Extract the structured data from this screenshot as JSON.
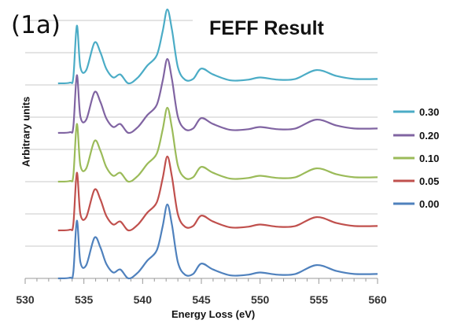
{
  "panel_label": "(1a)",
  "chart_data": {
    "type": "line",
    "title": "FEFF Result",
    "xlabel": "Energy Loss (eV)",
    "ylabel": "Arbitrary units",
    "xlim": [
      530,
      560
    ],
    "xticks": [
      530,
      535,
      540,
      545,
      550,
      555,
      560
    ],
    "grid": true,
    "legend_position": "right",
    "series": [
      {
        "name": "0.30",
        "color": "#4bacc6"
      },
      {
        "name": "0.20",
        "color": "#8064a2"
      },
      {
        "name": "0.10",
        "color": "#9bbb59"
      },
      {
        "name": "0.05",
        "color": "#c0504d"
      },
      {
        "name": "0.00",
        "color": "#4f81bd"
      }
    ],
    "curve_shape_x": [
      532.8,
      533.8,
      534.1,
      534.4,
      534.7,
      535.2,
      535.9,
      536.4,
      536.9,
      537.5,
      538.1,
      538.8,
      539.6,
      540.4,
      541.2,
      541.7,
      542.1,
      542.5,
      543.0,
      543.6,
      544.3,
      545.0,
      546.0,
      547.5,
      549.0,
      550.0,
      551.5,
      553.0,
      554.8,
      556.5,
      558.0,
      560.0
    ],
    "curve_shape_y": [
      0.0,
      0.01,
      0.08,
      0.78,
      0.22,
      0.18,
      0.55,
      0.42,
      0.2,
      0.08,
      0.12,
      0.0,
      0.08,
      0.24,
      0.38,
      0.7,
      1.0,
      0.72,
      0.22,
      0.05,
      0.06,
      0.2,
      0.12,
      0.04,
      0.05,
      0.08,
      0.05,
      0.06,
      0.18,
      0.1,
      0.06,
      0.06
    ]
  }
}
